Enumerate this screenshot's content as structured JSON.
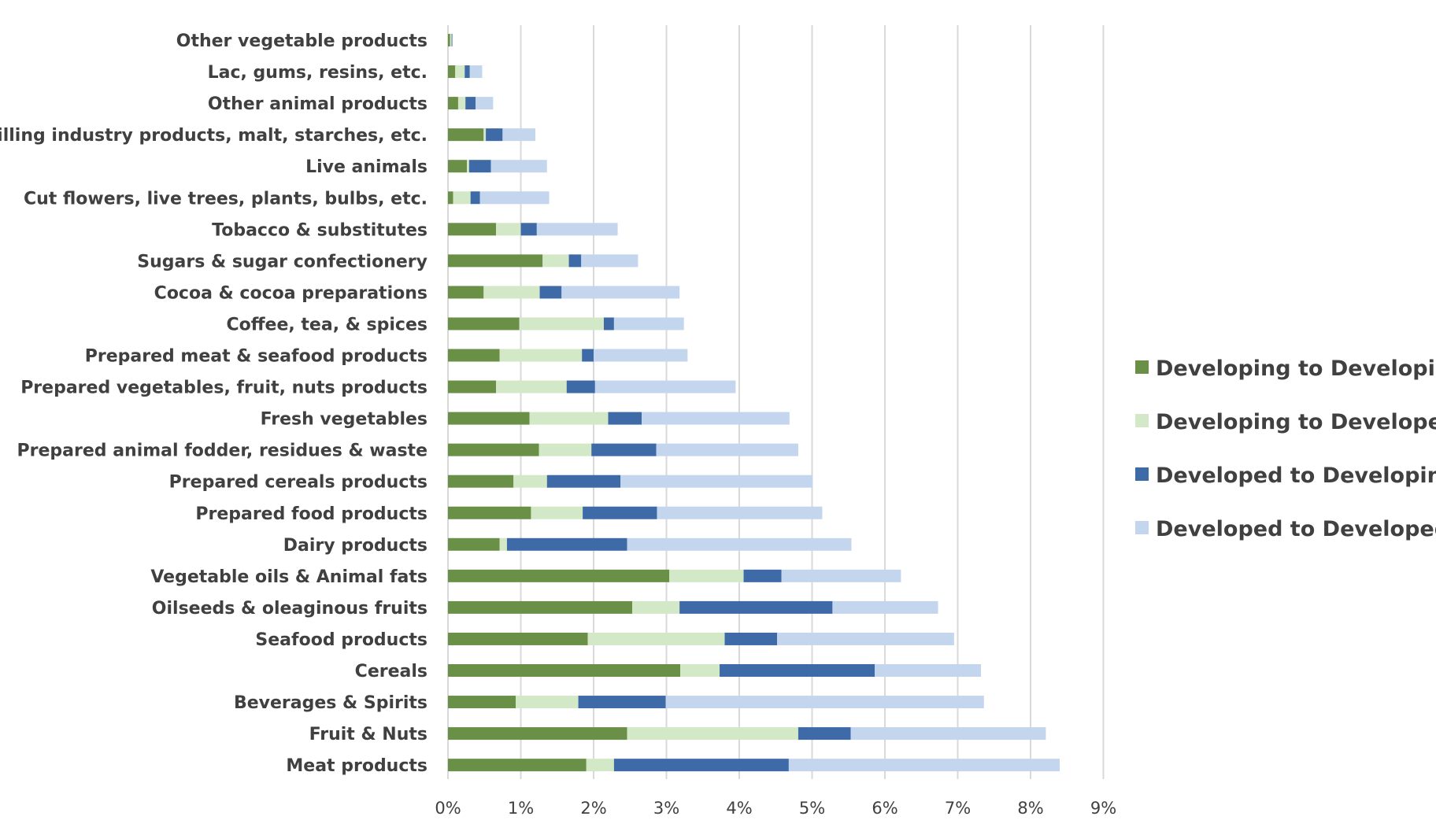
{
  "chart_data": {
    "type": "bar",
    "orientation": "horizontal",
    "stacked": true,
    "title": "",
    "xlabel": "",
    "ylabel": "",
    "xlim": [
      0,
      0.09
    ],
    "x_ticks": [
      "0%",
      "1%",
      "2%",
      "3%",
      "4%",
      "5%",
      "6%",
      "7%",
      "8%",
      "9%"
    ],
    "grid": true,
    "legend_position": "right",
    "categories": [
      "Other vegetable products",
      "Lac, gums, resins, etc.",
      "Other animal products",
      "Milling industry products, malt, starches, etc.",
      "Live animals",
      "Cut flowers, live trees, plants, bulbs, etc.",
      "Tobacco & substitutes",
      "Sugars & sugar confectionery",
      "Cocoa & cocoa preparations",
      "Coffee, tea, & spices",
      "Prepared meat & seafood products",
      "Prepared vegetables, fruit, nuts products",
      "Fresh vegetables",
      "Prepared animal fodder, residues & waste",
      "Prepared cereals products",
      "Prepared food products",
      "Dairy products",
      "Vegetable oils & Animal fats",
      "Oilseeds & oleaginous fruits",
      "Seafood products",
      "Cereals",
      "Beverages & Spirits",
      "Fruit & Nuts",
      "Meat products"
    ],
    "series": [
      {
        "name": "Developing to Developing",
        "color": "#6a8f47",
        "values": [
          0.0003,
          0.001,
          0.0014,
          0.0049,
          0.0026,
          0.0007,
          0.0066,
          0.013,
          0.0049,
          0.0098,
          0.0071,
          0.0066,
          0.0112,
          0.0125,
          0.009,
          0.0114,
          0.0071,
          0.0304,
          0.0253,
          0.0192,
          0.0319,
          0.0093,
          0.0246,
          0.019
        ]
      },
      {
        "name": "Developing to Developed",
        "color": "#d3e8c6",
        "values": [
          0.0002,
          0.0013,
          0.001,
          0.0003,
          0.0003,
          0.0024,
          0.0034,
          0.0036,
          0.0077,
          0.0116,
          0.0113,
          0.0097,
          0.0108,
          0.0072,
          0.0046,
          0.0071,
          0.001,
          0.0102,
          0.0065,
          0.0188,
          0.0054,
          0.0086,
          0.0235,
          0.0038
        ]
      },
      {
        "name": "Developed to Developing",
        "color": "#3e6aa8",
        "values": [
          0.0001,
          0.0007,
          0.0014,
          0.0023,
          0.003,
          0.0013,
          0.0022,
          0.0017,
          0.003,
          0.0014,
          0.0016,
          0.0039,
          0.0046,
          0.0089,
          0.0101,
          0.0102,
          0.0165,
          0.0052,
          0.021,
          0.0072,
          0.0213,
          0.012,
          0.0072,
          0.024
        ]
      },
      {
        "name": "Developed to Developed",
        "color": "#c4d5ee",
        "values": [
          0.0,
          0.0017,
          0.0024,
          0.0045,
          0.0077,
          0.0095,
          0.0111,
          0.0078,
          0.0162,
          0.0096,
          0.0129,
          0.0193,
          0.0203,
          0.0195,
          0.0264,
          0.0227,
          0.0308,
          0.0164,
          0.0145,
          0.0243,
          0.0146,
          0.0437,
          0.0268,
          0.0372
        ]
      }
    ]
  }
}
